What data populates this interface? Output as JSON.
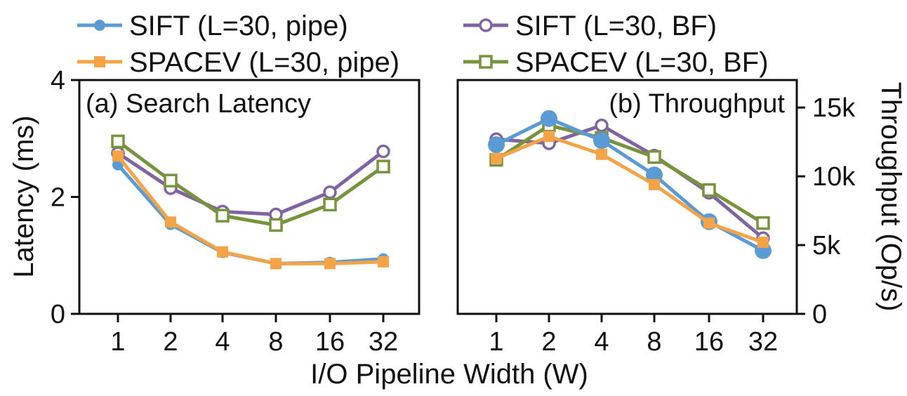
{
  "chart_data": {
    "type": "line",
    "legend": {
      "placement": "top",
      "entries": [
        {
          "label": "SIFT (L=30, pipe)",
          "color": "#5b9bd5",
          "marker": "filled-circle"
        },
        {
          "label": "SIFT (L=30, BF)",
          "color": "#8064a2",
          "marker": "open-circle"
        },
        {
          "label": "SPACEV (L=30, pipe)",
          "color": "#f5a347",
          "marker": "filled-square"
        },
        {
          "label": "SPACEV (L=30, BF)",
          "color": "#77933c",
          "marker": "open-square"
        }
      ]
    },
    "xlabel": "I/O Pipeline Width (W)",
    "x": [
      "1",
      "2",
      "4",
      "8",
      "16",
      "32"
    ],
    "panels": [
      {
        "title": "(a) Search Latency",
        "ylabel": "Latency (ms)",
        "y_axis_side": "left",
        "ylim": [
          0,
          4
        ],
        "yticks": [
          {
            "value": 0,
            "label": "0"
          },
          {
            "value": 2,
            "label": "2"
          },
          {
            "value": 4,
            "label": "4"
          }
        ],
        "series": [
          {
            "name": "SIFT (L=30, BF)",
            "values": [
              2.75,
              2.15,
              1.75,
              1.7,
              2.08,
              2.78
            ]
          },
          {
            "name": "SPACEV (L=30, BF)",
            "values": [
              2.95,
              2.28,
              1.68,
              1.52,
              1.87,
              2.52
            ]
          },
          {
            "name": "SIFT (L=30, pipe)",
            "values": [
              2.55,
              1.53,
              1.05,
              0.86,
              0.88,
              0.94
            ]
          },
          {
            "name": "SPACEV (L=30, pipe)",
            "values": [
              2.7,
              1.57,
              1.06,
              0.86,
              0.86,
              0.89
            ]
          }
        ]
      },
      {
        "title": "(b) Throughput",
        "ylabel": "Throughput (Op/s)",
        "y_axis_side": "right",
        "ylim": [
          0,
          17000
        ],
        "yticks": [
          {
            "value": 0,
            "label": "0"
          },
          {
            "value": 5000,
            "label": "5k"
          },
          {
            "value": 10000,
            "label": "10k"
          },
          {
            "value": 15000,
            "label": "15k"
          }
        ],
        "series": [
          {
            "name": "SIFT (L=30, BF)",
            "values": [
              12700,
              12400,
              13700,
              11500,
              8800,
              5500
            ]
          },
          {
            "name": "SPACEV (L=30, BF)",
            "values": [
              11200,
              13700,
              12800,
              11400,
              9000,
              6600
            ]
          },
          {
            "name": "SIFT (L=30, pipe)",
            "values": [
              12300,
              14200,
              12600,
              10100,
              6700,
              4600
            ]
          },
          {
            "name": "SPACEV (L=30, pipe)",
            "values": [
              11300,
              12900,
              11600,
              9400,
              6600,
              5200
            ]
          }
        ]
      }
    ]
  }
}
